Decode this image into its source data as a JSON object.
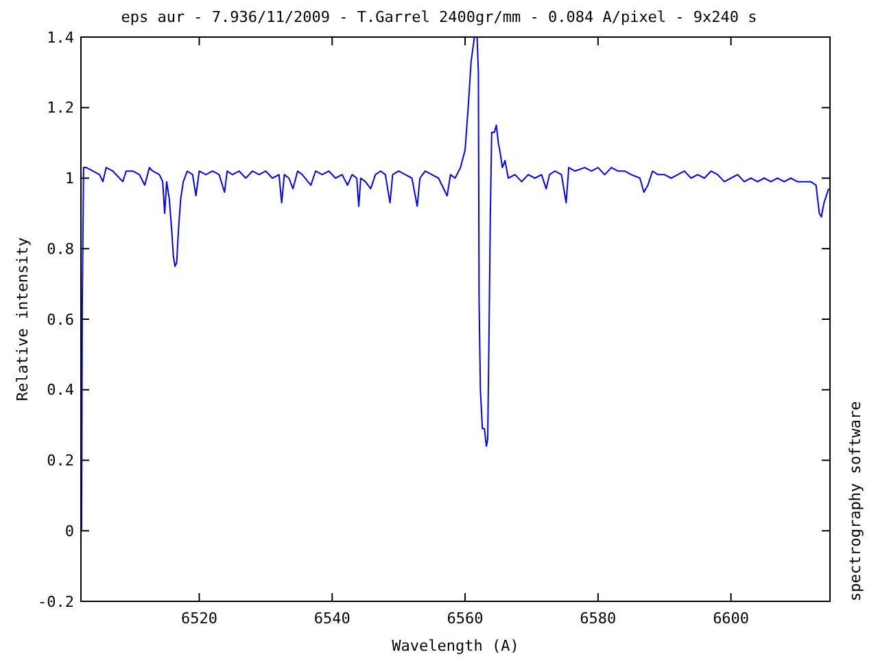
{
  "chart_data": {
    "type": "line",
    "title": "eps aur - 7.936/11/2009 - T.Garrel 2400gr/mm - 0.084 A/pixel - 9x240 s",
    "xlabel": "Wavelength (A)",
    "ylabel": "Relative intensity",
    "annotations": [
      "spectrography software"
    ],
    "xlim": [
      6502.2,
      6614.9
    ],
    "xticks": [
      6520,
      6540,
      6560,
      6580,
      6600
    ],
    "ylim": [
      -0.2,
      1.4
    ],
    "yticks": [
      -0.2,
      0,
      0.2,
      0.4,
      0.6,
      0.8,
      1,
      1.2,
      1.4
    ],
    "grid": false,
    "series": [
      {
        "color": "#0000ff",
        "x": [
          6502.3,
          6502.4,
          6502.6,
          6503,
          6504,
          6505,
          6505.5,
          6506,
          6507,
          6508,
          6508.5,
          6509,
          6510,
          6511,
          6511.8,
          6512.5,
          6513,
          6514,
          6514.5,
          6514.8,
          6515.1,
          6515.5,
          6515.9,
          6516.1,
          6516.35,
          6516.6,
          6516.9,
          6517.2,
          6517.6,
          6518.2,
          6519,
          6519.5,
          6520,
          6521,
          6522,
          6523,
          6523.8,
          6524.2,
          6525,
          6526,
          6527,
          6528,
          6529,
          6530,
          6531,
          6532,
          6532.4,
          6532.8,
          6533.5,
          6534.1,
          6534.8,
          6535.5,
          6536.8,
          6537.5,
          6538.5,
          6539.5,
          6540.5,
          6541.5,
          6542.3,
          6543,
          6543.7,
          6544,
          6544.3,
          6545,
          6545.8,
          6546.5,
          6547.3,
          6548,
          6548.7,
          6549.1,
          6550,
          6551,
          6552,
          6552.8,
          6553.2,
          6554,
          6555,
          6556,
          6557.3,
          6557.8,
          6558.5,
          6559.3,
          6560,
          6560.5,
          6560.9,
          6561.4,
          6561.8,
          6562,
          6562.1,
          6562.3,
          6562.6,
          6562.9,
          6563.2,
          6563.4,
          6563.6,
          6563.8,
          6564,
          6564.4,
          6564.7,
          6565,
          6565.3,
          6565.6,
          6566,
          6566.5,
          6567.5,
          6568.5,
          6569.5,
          6570.5,
          6571.5,
          6572.2,
          6572.7,
          6573.5,
          6574.5,
          6575.2,
          6575.6,
          6576.5,
          6578,
          6579,
          6580,
          6581,
          6582,
          6583,
          6584,
          6585,
          6586.3,
          6586.9,
          6587.5,
          6588.2,
          6589,
          6590,
          6591,
          6592,
          6593,
          6594,
          6595,
          6596,
          6597,
          6598,
          6599,
          6600,
          6601,
          6602,
          6603,
          6604,
          6605,
          6606,
          6607,
          6608,
          6609,
          6610,
          6611,
          6612,
          6612.8,
          6613.3,
          6613.6,
          6614,
          6614.7
        ],
        "values": [
          0,
          0.64,
          1.03,
          1.03,
          1.02,
          1.01,
          0.99,
          1.03,
          1.02,
          1,
          0.99,
          1.02,
          1.02,
          1.01,
          0.98,
          1.03,
          1.02,
          1.01,
          0.99,
          0.9,
          0.99,
          0.94,
          0.84,
          0.78,
          0.75,
          0.76,
          0.86,
          0.94,
          0.99,
          1.02,
          1.01,
          0.95,
          1.02,
          1.01,
          1.02,
          1.01,
          0.96,
          1.02,
          1.01,
          1.02,
          1,
          1.02,
          1.01,
          1.02,
          1,
          1.01,
          0.93,
          1.01,
          1,
          0.97,
          1.02,
          1.01,
          0.98,
          1.02,
          1.01,
          1.02,
          1,
          1.01,
          0.98,
          1.01,
          1,
          0.92,
          1,
          0.99,
          0.97,
          1.01,
          1.02,
          1.01,
          0.93,
          1.01,
          1.02,
          1.01,
          1,
          0.92,
          1,
          1.02,
          1.01,
          1,
          0.95,
          1.01,
          1,
          1.03,
          1.08,
          1.21,
          1.33,
          1.4,
          1.4,
          1.3,
          0.66,
          0.4,
          0.29,
          0.29,
          0.24,
          0.26,
          0.56,
          0.9,
          1.13,
          1.13,
          1.15,
          1.1,
          1.07,
          1.03,
          1.05,
          1,
          1.01,
          0.99,
          1.01,
          1,
          1.01,
          0.97,
          1.01,
          1.02,
          1.01,
          0.93,
          1.03,
          1.02,
          1.03,
          1.02,
          1.03,
          1.01,
          1.03,
          1.02,
          1.02,
          1.01,
          1,
          0.96,
          0.98,
          1.02,
          1.01,
          1.01,
          1,
          1.01,
          1.02,
          1,
          1.01,
          1,
          1.02,
          1.01,
          0.99,
          1,
          1.01,
          0.99,
          1,
          0.99,
          1,
          0.99,
          1,
          0.99,
          1,
          0.99,
          0.99,
          0.99,
          0.98,
          0.9,
          0.89,
          0.93,
          0.97
        ]
      }
    ]
  }
}
